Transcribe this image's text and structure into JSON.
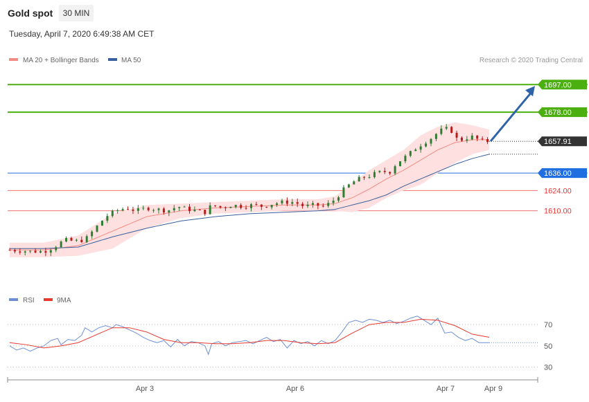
{
  "header": {
    "title": "Gold spot",
    "timeframe": "30 MIN",
    "timestamp": "Tuesday, April 7, 2020 6:49:38 AM CET"
  },
  "legend": {
    "ma20_bb": "MA 20 + Bollinger Bands",
    "ma50": "MA 50",
    "credit": "Research © 2020 Trading Central"
  },
  "rsi_legend": {
    "rsi": "RSI",
    "ma9": "9MA"
  },
  "colors": {
    "up": "#2e7d32",
    "down": "#b71c1c",
    "ma20": "#f28b82",
    "bollinger_fill": "#fde0df",
    "ma50": "#3a5f9e",
    "resistance": "#4caf10",
    "support": "#1f6fe0",
    "pivot": "#f07070",
    "last": "#333333",
    "arrow": "#2f63a8",
    "rsi": "#6b8fd6",
    "rsi_ma": "#e8382f"
  },
  "chart_data": [
    {
      "type": "candlestick",
      "title": "Gold spot",
      "timeframe": "30 MIN",
      "xlabels": [
        "Apr 3",
        "Apr 6",
        "Apr 7",
        "Apr 9"
      ],
      "ylim": [
        1555,
        1710
      ],
      "levels": [
        {
          "value": 1697.0,
          "label": "1697.00",
          "kind": "resistance"
        },
        {
          "value": 1678.0,
          "label": "1678.00",
          "kind": "resistance"
        },
        {
          "value": 1657.91,
          "label": "1657.91",
          "kind": "last"
        },
        {
          "value": 1636.0,
          "label": "1636.00",
          "kind": "support"
        },
        {
          "value": 1624.0,
          "label": "1624.00",
          "kind": "pivot"
        },
        {
          "value": 1610.0,
          "label": "1610.00",
          "kind": "pivot"
        }
      ],
      "forecast_arrow": {
        "from": 1657.91,
        "to": 1697.0
      },
      "path_points": [
        [
          0,
          1583
        ],
        [
          12,
          1582
        ],
        [
          20,
          1582
        ],
        [
          26,
          1585
        ],
        [
          32,
          1590
        ],
        [
          38,
          1589
        ],
        [
          44,
          1590
        ],
        [
          50,
          1598
        ],
        [
          56,
          1606
        ],
        [
          62,
          1610
        ],
        [
          68,
          1612
        ],
        [
          74,
          1610
        ],
        [
          80,
          1612
        ],
        [
          86,
          1611
        ],
        [
          92,
          1610
        ],
        [
          98,
          1613
        ],
        [
          104,
          1611
        ],
        [
          110,
          1610
        ],
        [
          114,
          1609
        ],
        [
          118,
          1614
        ],
        [
          124,
          1612
        ],
        [
          130,
          1614
        ],
        [
          136,
          1613
        ],
        [
          142,
          1614
        ],
        [
          148,
          1613
        ],
        [
          154,
          1615
        ],
        [
          160,
          1616
        ],
        [
          166,
          1616
        ],
        [
          172,
          1613
        ],
        [
          178,
          1614
        ],
        [
          184,
          1613
        ],
        [
          190,
          1618
        ],
        [
          196,
          1626
        ],
        [
          202,
          1631
        ],
        [
          206,
          1633
        ],
        [
          210,
          1634
        ],
        [
          214,
          1636
        ],
        [
          218,
          1637
        ],
        [
          222,
          1637
        ],
        [
          226,
          1643
        ],
        [
          232,
          1648
        ],
        [
          238,
          1654
        ],
        [
          242,
          1657
        ],
        [
          246,
          1660
        ],
        [
          250,
          1664
        ],
        [
          254,
          1667
        ],
        [
          258,
          1665
        ],
        [
          262,
          1658
        ],
        [
          266,
          1660
        ],
        [
          270,
          1661
        ],
        [
          276,
          1658
        ],
        [
          280,
          1657.91
        ]
      ],
      "ma20": [
        [
          0,
          1583
        ],
        [
          20,
          1583
        ],
        [
          40,
          1586
        ],
        [
          60,
          1596
        ],
        [
          80,
          1606
        ],
        [
          100,
          1610
        ],
        [
          120,
          1612
        ],
        [
          140,
          1613
        ],
        [
          160,
          1614
        ],
        [
          180,
          1614
        ],
        [
          190,
          1615
        ],
        [
          200,
          1619
        ],
        [
          210,
          1625
        ],
        [
          220,
          1632
        ],
        [
          230,
          1638
        ],
        [
          240,
          1645
        ],
        [
          250,
          1652
        ],
        [
          260,
          1657
        ],
        [
          270,
          1659
        ],
        [
          280,
          1659
        ]
      ],
      "bollinger_upper": [
        [
          0,
          1588
        ],
        [
          20,
          1588
        ],
        [
          40,
          1593
        ],
        [
          60,
          1608
        ],
        [
          80,
          1614
        ],
        [
          100,
          1615
        ],
        [
          120,
          1616
        ],
        [
          140,
          1617
        ],
        [
          160,
          1618
        ],
        [
          180,
          1618
        ],
        [
          190,
          1620
        ],
        [
          200,
          1629
        ],
        [
          210,
          1638
        ],
        [
          220,
          1645
        ],
        [
          230,
          1652
        ],
        [
          240,
          1662
        ],
        [
          250,
          1668
        ],
        [
          260,
          1671
        ],
        [
          270,
          1669
        ],
        [
          280,
          1666
        ]
      ],
      "bollinger_lower": [
        [
          0,
          1578
        ],
        [
          20,
          1578
        ],
        [
          40,
          1579
        ],
        [
          60,
          1584
        ],
        [
          80,
          1598
        ],
        [
          100,
          1605
        ],
        [
          120,
          1608
        ],
        [
          140,
          1609
        ],
        [
          160,
          1610
        ],
        [
          180,
          1610
        ],
        [
          190,
          1610
        ],
        [
          200,
          1609
        ],
        [
          210,
          1612
        ],
        [
          220,
          1619
        ],
        [
          230,
          1624
        ],
        [
          240,
          1628
        ],
        [
          250,
          1636
        ],
        [
          260,
          1643
        ],
        [
          270,
          1649
        ],
        [
          280,
          1652
        ]
      ],
      "ma50": [
        [
          0,
          1584
        ],
        [
          20,
          1584
        ],
        [
          40,
          1585
        ],
        [
          60,
          1592
        ],
        [
          80,
          1598
        ],
        [
          100,
          1603
        ],
        [
          120,
          1606
        ],
        [
          140,
          1608
        ],
        [
          160,
          1609
        ],
        [
          180,
          1610
        ],
        [
          190,
          1611
        ],
        [
          200,
          1614
        ],
        [
          210,
          1617
        ],
        [
          220,
          1621
        ],
        [
          230,
          1627
        ],
        [
          240,
          1632
        ],
        [
          250,
          1637
        ],
        [
          260,
          1642
        ],
        [
          270,
          1646
        ],
        [
          280,
          1649
        ]
      ]
    },
    {
      "type": "line",
      "title": "RSI",
      "series_names": [
        "RSI",
        "9MA"
      ],
      "ylim": [
        20,
        85
      ],
      "yticks": [
        30,
        50,
        70
      ],
      "rsi": [
        [
          0,
          50
        ],
        [
          4,
          46
        ],
        [
          8,
          48
        ],
        [
          12,
          45
        ],
        [
          16,
          48
        ],
        [
          20,
          50
        ],
        [
          24,
          55
        ],
        [
          28,
          57
        ],
        [
          30,
          51
        ],
        [
          34,
          56
        ],
        [
          38,
          55
        ],
        [
          42,
          60
        ],
        [
          44,
          67
        ],
        [
          48,
          63
        ],
        [
          52,
          67
        ],
        [
          56,
          69
        ],
        [
          60,
          67
        ],
        [
          62,
          70
        ],
        [
          66,
          68
        ],
        [
          70,
          65
        ],
        [
          74,
          62
        ],
        [
          78,
          58
        ],
        [
          82,
          55
        ],
        [
          86,
          53
        ],
        [
          90,
          55
        ],
        [
          94,
          49
        ],
        [
          98,
          56
        ],
        [
          102,
          50
        ],
        [
          106,
          54
        ],
        [
          110,
          53
        ],
        [
          114,
          50
        ],
        [
          116,
          42
        ],
        [
          118,
          52
        ],
        [
          122,
          54
        ],
        [
          126,
          50
        ],
        [
          130,
          53
        ],
        [
          134,
          54
        ],
        [
          138,
          55
        ],
        [
          142,
          52
        ],
        [
          146,
          55
        ],
        [
          150,
          58
        ],
        [
          154,
          54
        ],
        [
          158,
          56
        ],
        [
          162,
          48
        ],
        [
          166,
          55
        ],
        [
          170,
          52
        ],
        [
          174,
          54
        ],
        [
          178,
          50
        ],
        [
          182,
          55
        ],
        [
          186,
          52
        ],
        [
          190,
          55
        ],
        [
          194,
          63
        ],
        [
          198,
          72
        ],
        [
          202,
          74
        ],
        [
          206,
          72
        ],
        [
          210,
          75
        ],
        [
          214,
          74
        ],
        [
          218,
          72
        ],
        [
          222,
          74
        ],
        [
          226,
          71
        ],
        [
          230,
          73
        ],
        [
          234,
          76
        ],
        [
          238,
          78
        ],
        [
          242,
          74
        ],
        [
          246,
          70
        ],
        [
          250,
          76
        ],
        [
          254,
          62
        ],
        [
          258,
          63
        ],
        [
          262,
          58
        ],
        [
          266,
          55
        ],
        [
          270,
          57
        ],
        [
          274,
          53
        ],
        [
          280,
          53
        ]
      ],
      "rsi_ma": [
        [
          0,
          53
        ],
        [
          10,
          51
        ],
        [
          20,
          48
        ],
        [
          30,
          50
        ],
        [
          40,
          53
        ],
        [
          50,
          60
        ],
        [
          60,
          67
        ],
        [
          70,
          67
        ],
        [
          80,
          63
        ],
        [
          90,
          56
        ],
        [
          100,
          53
        ],
        [
          110,
          53
        ],
        [
          120,
          52
        ],
        [
          130,
          52
        ],
        [
          140,
          53
        ],
        [
          150,
          55
        ],
        [
          160,
          55
        ],
        [
          170,
          53
        ],
        [
          180,
          52
        ],
        [
          190,
          53
        ],
        [
          200,
          62
        ],
        [
          210,
          70
        ],
        [
          220,
          72
        ],
        [
          230,
          72
        ],
        [
          240,
          75
        ],
        [
          250,
          74
        ],
        [
          260,
          69
        ],
        [
          270,
          61
        ],
        [
          280,
          58
        ]
      ],
      "last_rsi": 53
    }
  ]
}
